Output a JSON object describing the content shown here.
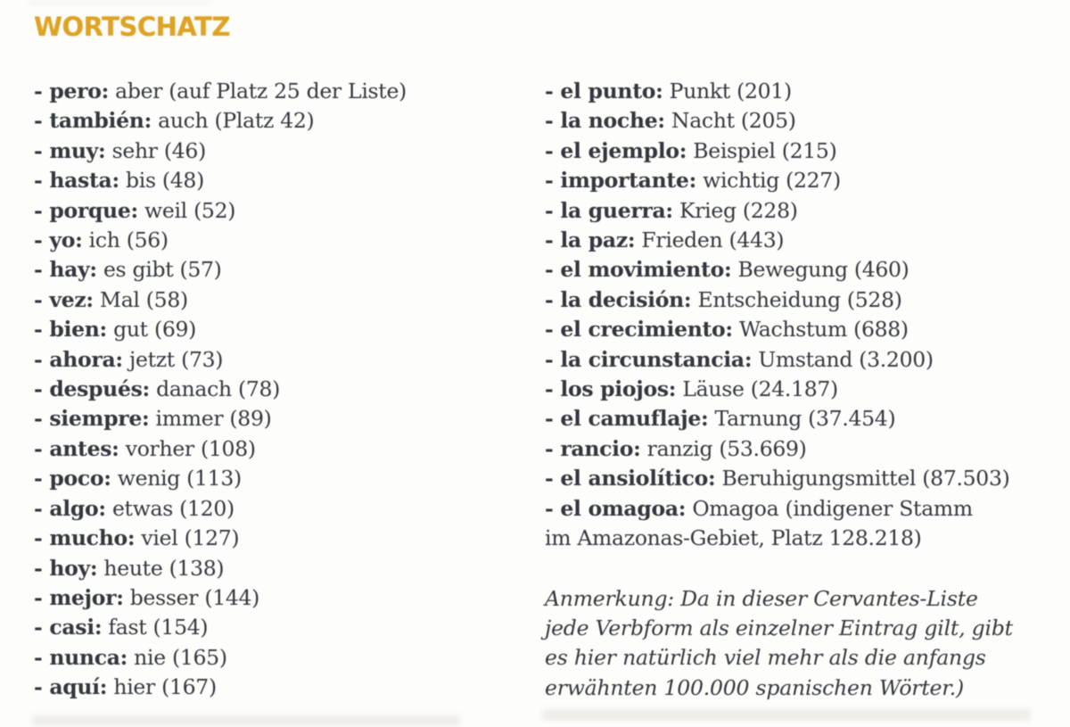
{
  "header": {
    "title": "WORTSCHATZ"
  },
  "colors": {
    "accent": "#dfa324",
    "text": "#34373d",
    "background": "#fdfdfc"
  },
  "vocab": {
    "left": [
      {
        "term": "- pero:",
        "def": "aber (auf Platz 25 der Liste)"
      },
      {
        "term": "- también:",
        "def": "auch (Platz 42)"
      },
      {
        "term": "- muy:",
        "def": "sehr (46)"
      },
      {
        "term": "- hasta:",
        "def": "bis (48)"
      },
      {
        "term": "- porque:",
        "def": "weil (52)"
      },
      {
        "term": "- yo:",
        "def": "ich (56)"
      },
      {
        "term": "- hay:",
        "def": "es gibt (57)"
      },
      {
        "term": "- vez:",
        "def": "Mal (58)"
      },
      {
        "term": "- bien:",
        "def": "gut (69)"
      },
      {
        "term": "- ahora:",
        "def": "jetzt (73)"
      },
      {
        "term": "- después:",
        "def": "danach (78)"
      },
      {
        "term": "- siempre:",
        "def": "immer (89)"
      },
      {
        "term": "- antes:",
        "def": "vorher (108)"
      },
      {
        "term": "- poco:",
        "def": "wenig (113)"
      },
      {
        "term": "- algo:",
        "def": "etwas (120)"
      },
      {
        "term": "- mucho:",
        "def": "viel (127)"
      },
      {
        "term": "- hoy:",
        "def": "heute (138)"
      },
      {
        "term": "- mejor:",
        "def": "besser (144)"
      },
      {
        "term": "- casi:",
        "def": "fast (154)"
      },
      {
        "term": "- nunca:",
        "def": "nie (165)"
      },
      {
        "term": "- aquí:",
        "def": "hier (167)"
      }
    ],
    "right": [
      {
        "term": "- el punto:",
        "def": "Punkt (201)"
      },
      {
        "term": "- la noche:",
        "def": "Nacht (205)"
      },
      {
        "term": "- el ejemplo:",
        "def": "Beispiel (215)"
      },
      {
        "term": "- importante:",
        "def": "wichtig (227)"
      },
      {
        "term": "- la guerra:",
        "def": "Krieg (228)"
      },
      {
        "term": "- la paz:",
        "def": "Frieden (443)"
      },
      {
        "term": "- el movimiento:",
        "def": "Bewegung (460)"
      },
      {
        "term": "- la decisión:",
        "def": "Entscheidung (528)"
      },
      {
        "term": "- el crecimiento:",
        "def": "Wachstum (688)"
      },
      {
        "term": "- la circunstancia:",
        "def": "Umstand (3.200)"
      },
      {
        "term": "- los piojos:",
        "def": "Läuse (24.187)"
      },
      {
        "term": "- el camuflaje:",
        "def": "Tarnung (37.454)"
      },
      {
        "term": "- rancio:",
        "def": "ranzig (53.669)"
      },
      {
        "term": "- el ansiolítico:",
        "def": "Beruhigungsmittel (87.503)"
      },
      {
        "term": "- el omagoa:",
        "def": "Omagoa (indigener Stamm",
        "def2": "im Amazonas-Gebiet, Platz 128.218)"
      }
    ]
  },
  "note": {
    "lines": [
      "Anmerkung: Da in dieser Cervantes-Liste",
      "jede Verbform als einzelner Eintrag gilt, gibt",
      "es hier natürlich viel mehr als die anfangs",
      "erwähnten 100.000 spanischen Wörter.)"
    ]
  }
}
